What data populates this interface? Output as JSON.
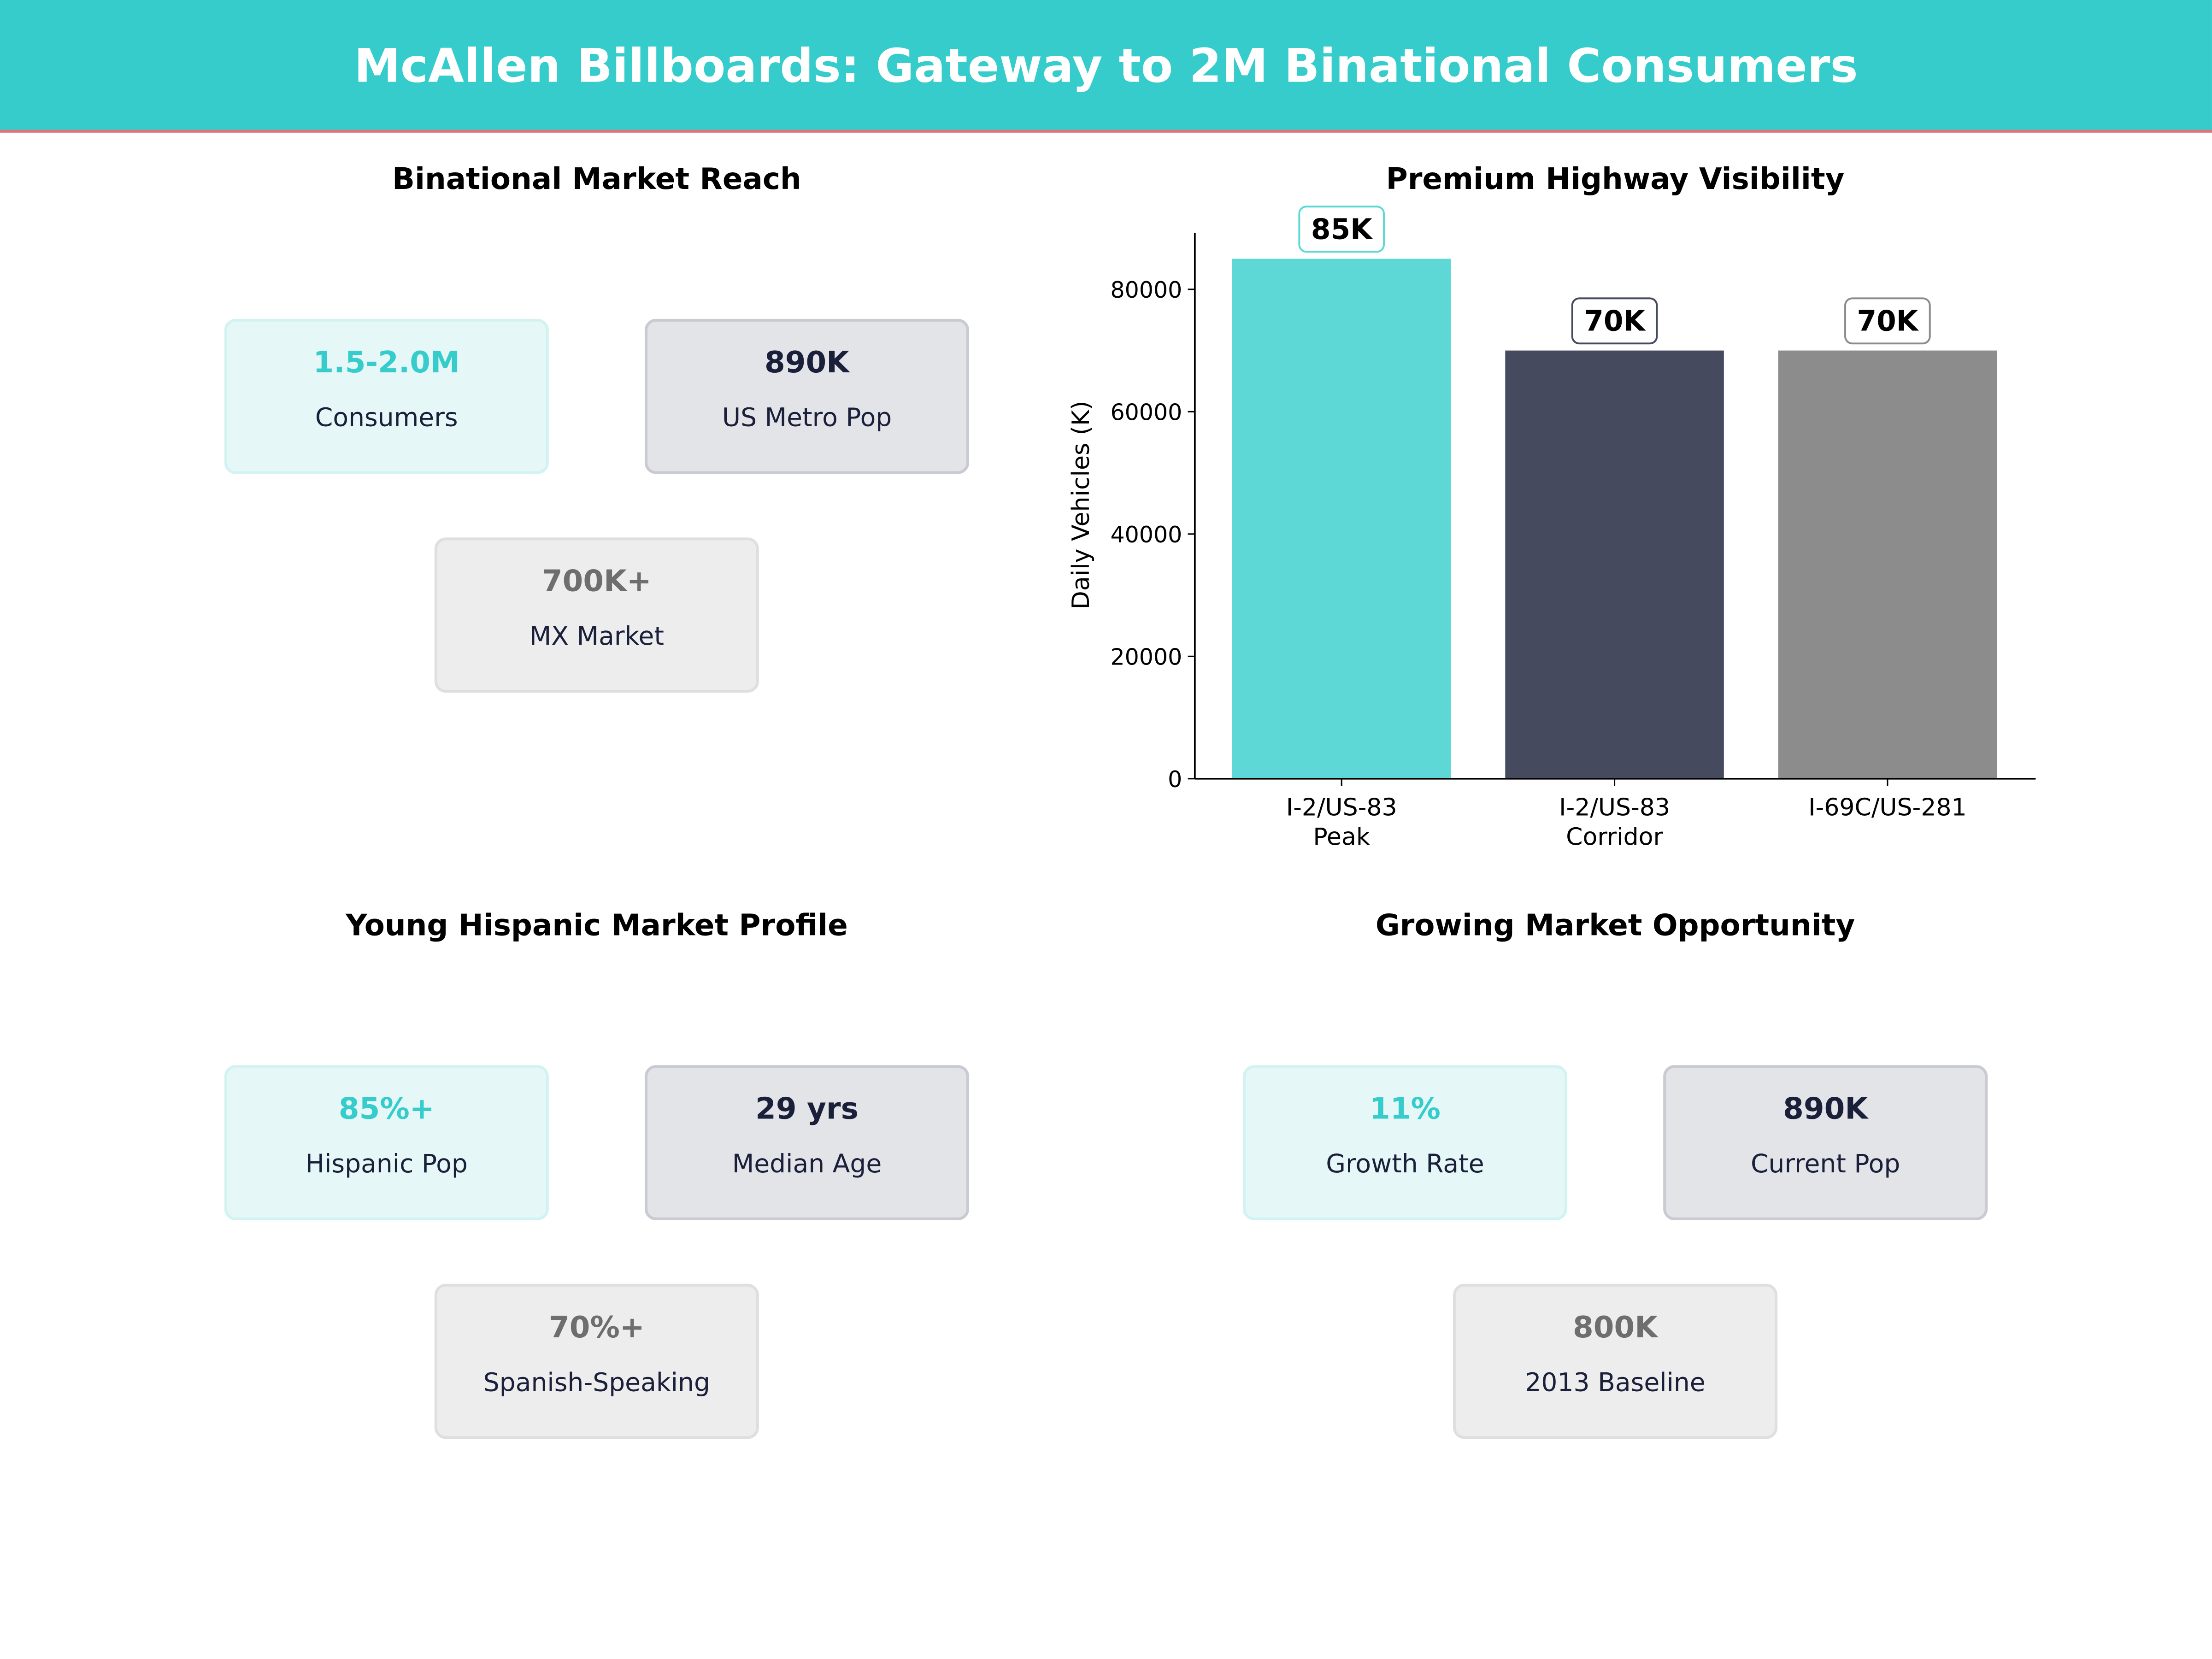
{
  "header": {
    "title": "McAllen Billboards: Gateway to 2M Binational Consumers",
    "color": "#36cccc",
    "accent_line": "#e8707a"
  },
  "panels": {
    "reach": {
      "title": "Binational Market Reach",
      "cards": [
        {
          "value": "1.5-2.0M",
          "label": "Consumers"
        },
        {
          "value": "890K",
          "label": "US Metro Pop"
        },
        {
          "value": "700K+",
          "label": "MX Market"
        }
      ]
    },
    "profile": {
      "title": "Young Hispanic Market Profile",
      "cards": [
        {
          "value": "85%+",
          "label": "Hispanic Pop"
        },
        {
          "value": "29 yrs",
          "label": "Median Age"
        },
        {
          "value": "70%+",
          "label": "Spanish-Speaking"
        }
      ]
    },
    "growth": {
      "title": "Growing Market Opportunity",
      "cards": [
        {
          "value": "11%",
          "label": "Growth Rate"
        },
        {
          "value": "890K",
          "label": "Current Pop"
        },
        {
          "value": "800K",
          "label": "2013 Baseline"
        }
      ]
    }
  },
  "chart_data": {
    "type": "bar",
    "title": "Premium Highway Visibility",
    "ylabel": "Daily Vehicles (K)",
    "xlabel": "",
    "categories": [
      "I-2/US-83\nPeak",
      "I-2/US-83\nCorridor",
      "I-69C/US-281"
    ],
    "values": [
      85000,
      70000,
      70000
    ],
    "data_labels": [
      "85K",
      "70K",
      "70K"
    ],
    "colors": [
      "#5dd8d6",
      "#454a5f",
      "#8c8c8c"
    ],
    "label_border_colors": [
      "#5dd8d6",
      "#454a5f",
      "#8c8c8c"
    ],
    "yticks": [
      0,
      20000,
      40000,
      60000,
      80000
    ],
    "ylim": [
      0,
      89250
    ],
    "grid": false
  }
}
